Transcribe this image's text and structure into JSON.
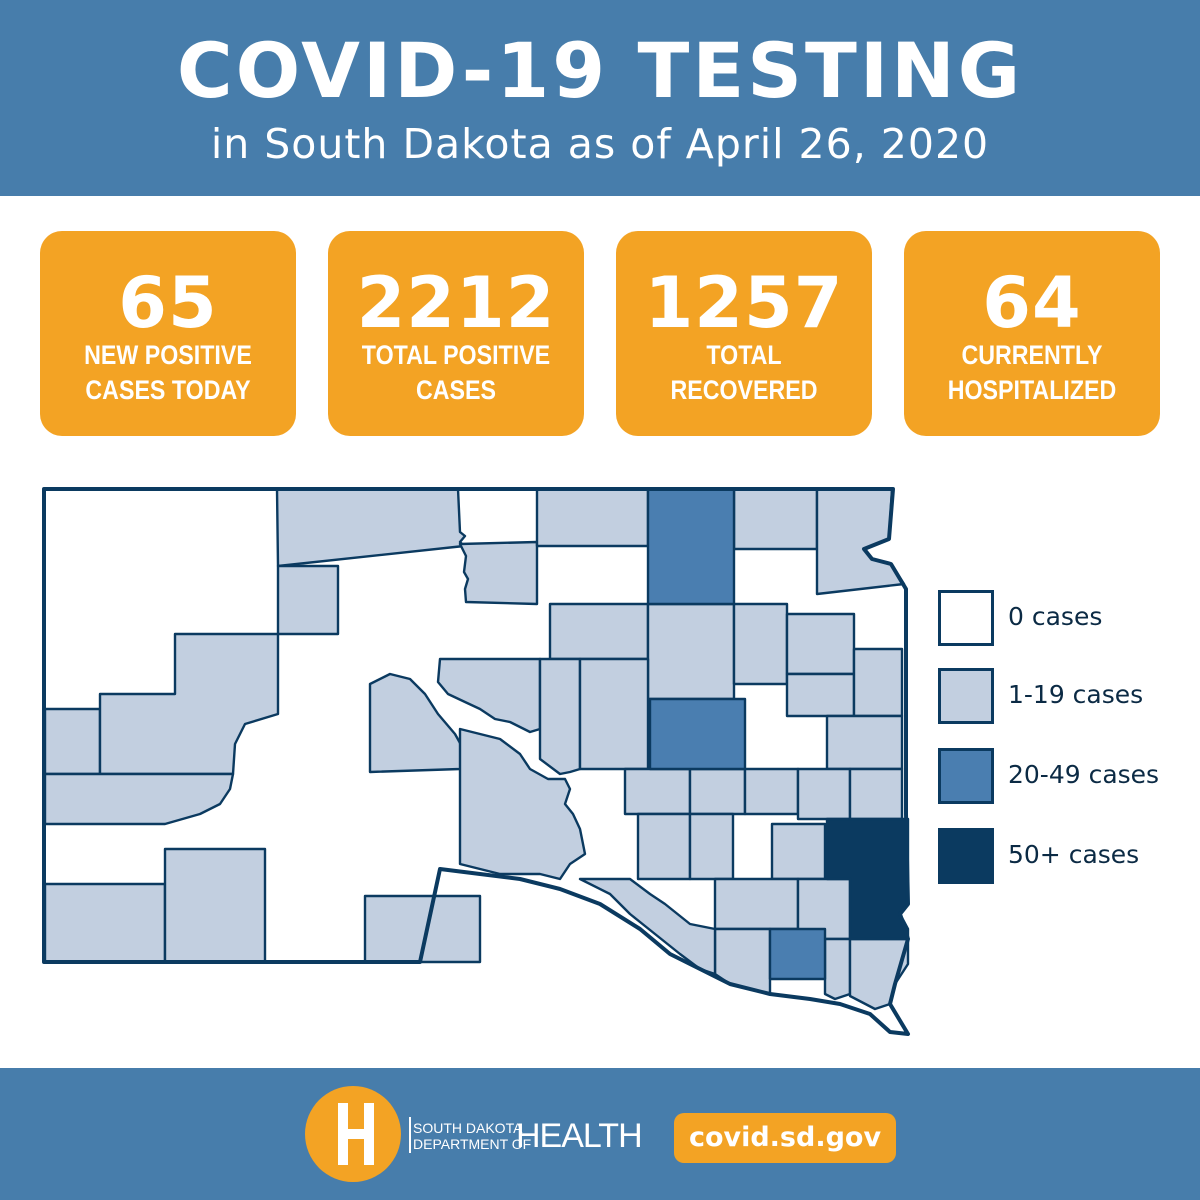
{
  "header": {
    "title": "COVID-19 TESTING",
    "subtitle": "in South Dakota as of April 26, 2020"
  },
  "stats": [
    {
      "value": "65",
      "line1": "NEW POSITIVE",
      "line2": "CASES TODAY"
    },
    {
      "value": "2212",
      "line1": "TOTAL POSITIVE",
      "line2": "CASES"
    },
    {
      "value": "1257",
      "line1": "TOTAL",
      "line2": "RECOVERED"
    },
    {
      "value": "64",
      "line1": "CURRENTLY",
      "line2": "HOSPITALIZED"
    }
  ],
  "legend": [
    {
      "label": "0 cases",
      "color": "#ffffff"
    },
    {
      "label": "1-19 cases",
      "color": "#c2cfe0"
    },
    {
      "label": "20-49 cases",
      "color": "#4a7eb0"
    },
    {
      "label": "50+ cases",
      "color": "#0b3a60"
    }
  ],
  "colors": {
    "header_bg": "#477dab",
    "stat_bg": "#f3a324",
    "county_border": "#0b3a60"
  },
  "footer": {
    "logo_line1": "SOUTH DAKOTA",
    "logo_line2": "DEPARTMENT OF",
    "logo_big": "HEALTH",
    "url": "covid.sd.gov"
  }
}
